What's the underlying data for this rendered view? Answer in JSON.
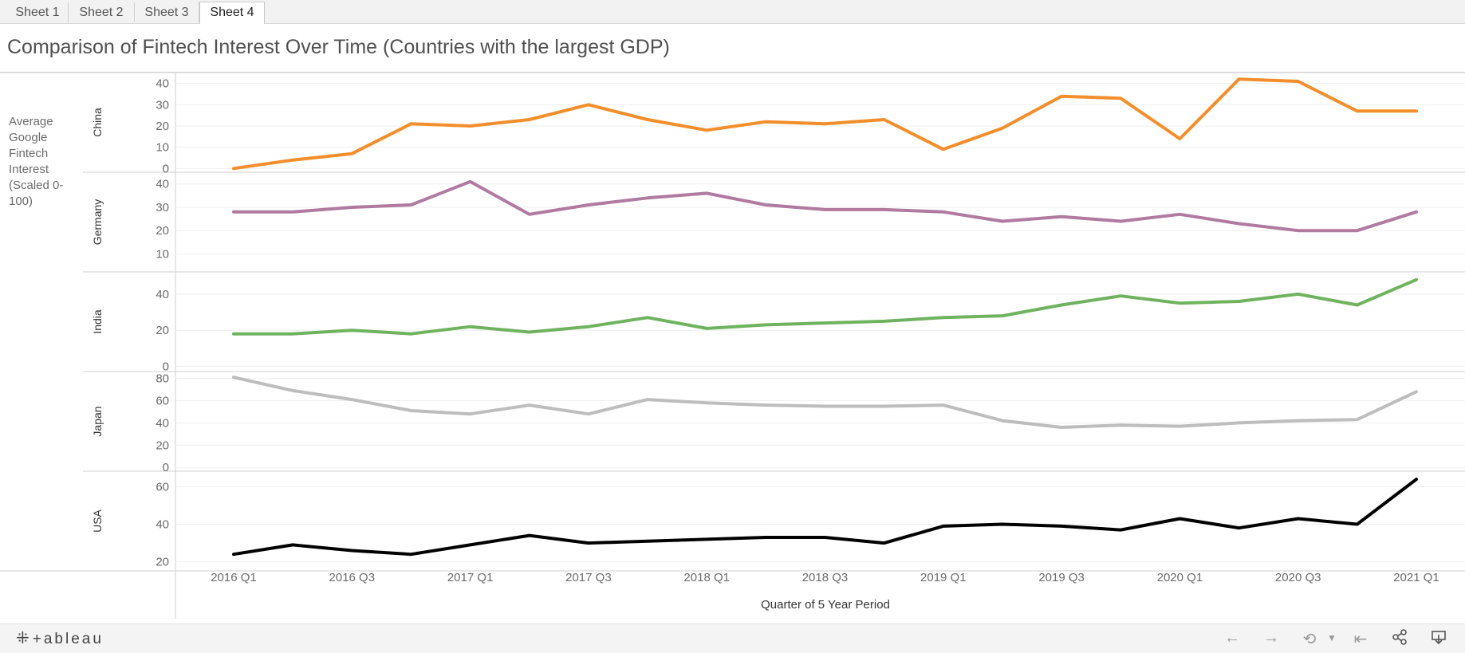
{
  "tabs": [
    "Sheet 1",
    "Sheet 2",
    "Sheet 3",
    "Sheet 4"
  ],
  "active_tab": "Sheet 4",
  "title": "Comparison of Fintech Interest Over Time (Countries with the largest GDP)",
  "footer": {
    "logo_text": "+ableau",
    "logo_icon": "tableau-logo-icon",
    "icons": [
      "undo-icon",
      "redo-icon",
      "revert-icon",
      "dropdown-icon",
      "reset-icon",
      "share-icon",
      "download-icon"
    ]
  },
  "chart_data": {
    "type": "line",
    "title": "Comparison of Fintech Interest Over Time (Countries with the largest GDP)",
    "xlabel": "Quarter of 5 Year Period",
    "ylabel": "Average Google Fintech Interest (Scaled 0-100)",
    "x": [
      "2016 Q1",
      "2016 Q2",
      "2016 Q3",
      "2016 Q4",
      "2017 Q1",
      "2017 Q2",
      "2017 Q3",
      "2017 Q4",
      "2018 Q1",
      "2018 Q2",
      "2018 Q3",
      "2018 Q4",
      "2019 Q1",
      "2019 Q2",
      "2019 Q3",
      "2019 Q4",
      "2020 Q1",
      "2020 Q2",
      "2020 Q3",
      "2020 Q4",
      "2021 Q1"
    ],
    "x_tick_labels": [
      "2016 Q1",
      "2016 Q3",
      "2017 Q1",
      "2017 Q3",
      "2018 Q1",
      "2018 Q3",
      "2019 Q1",
      "2019 Q3",
      "2020 Q1",
      "2020 Q3",
      "2021 Q1"
    ],
    "grid": true,
    "legend": "none",
    "series": [
      {
        "name": "China",
        "color": "#f28e2b",
        "ylim": [
          -1,
          44
        ],
        "yticks": [
          0,
          10,
          20,
          30,
          40
        ],
        "values": [
          0,
          4,
          7,
          21,
          20,
          23,
          30,
          23,
          18,
          22,
          21,
          23,
          9,
          19,
          34,
          33,
          14,
          42,
          41,
          27,
          27
        ]
      },
      {
        "name": "Germany",
        "color": "#b07aa1",
        "ylim": [
          3,
          44
        ],
        "yticks": [
          10,
          20,
          30,
          40
        ],
        "values": [
          28,
          28,
          30,
          31,
          41,
          27,
          31,
          34,
          36,
          31,
          29,
          29,
          28,
          24,
          26,
          24,
          27,
          23,
          20,
          20,
          28
        ]
      },
      {
        "name": "India",
        "color": "#6fb35f",
        "ylim": [
          -2,
          51
        ],
        "yticks": [
          0,
          20,
          40
        ],
        "values": [
          18,
          18,
          20,
          18,
          22,
          19,
          22,
          27,
          21,
          23,
          24,
          25,
          27,
          28,
          34,
          39,
          35,
          36,
          40,
          34,
          48
        ]
      },
      {
        "name": "Japan",
        "color": "#bdbdbd",
        "ylim": [
          -2,
          84
        ],
        "yticks": [
          0,
          20,
          40,
          60,
          80
        ],
        "values": [
          81,
          69,
          61,
          51,
          48,
          56,
          48,
          61,
          58,
          56,
          55,
          55,
          56,
          42,
          36,
          38,
          37,
          40,
          42,
          43,
          68
        ]
      },
      {
        "name": "USA",
        "color": "#000000",
        "ylim": [
          16,
          67
        ],
        "yticks": [
          20,
          40,
          60
        ],
        "values": [
          24,
          29,
          26,
          24,
          29,
          34,
          30,
          31,
          32,
          33,
          33,
          30,
          39,
          40,
          39,
          37,
          43,
          38,
          43,
          40,
          64
        ]
      }
    ]
  }
}
